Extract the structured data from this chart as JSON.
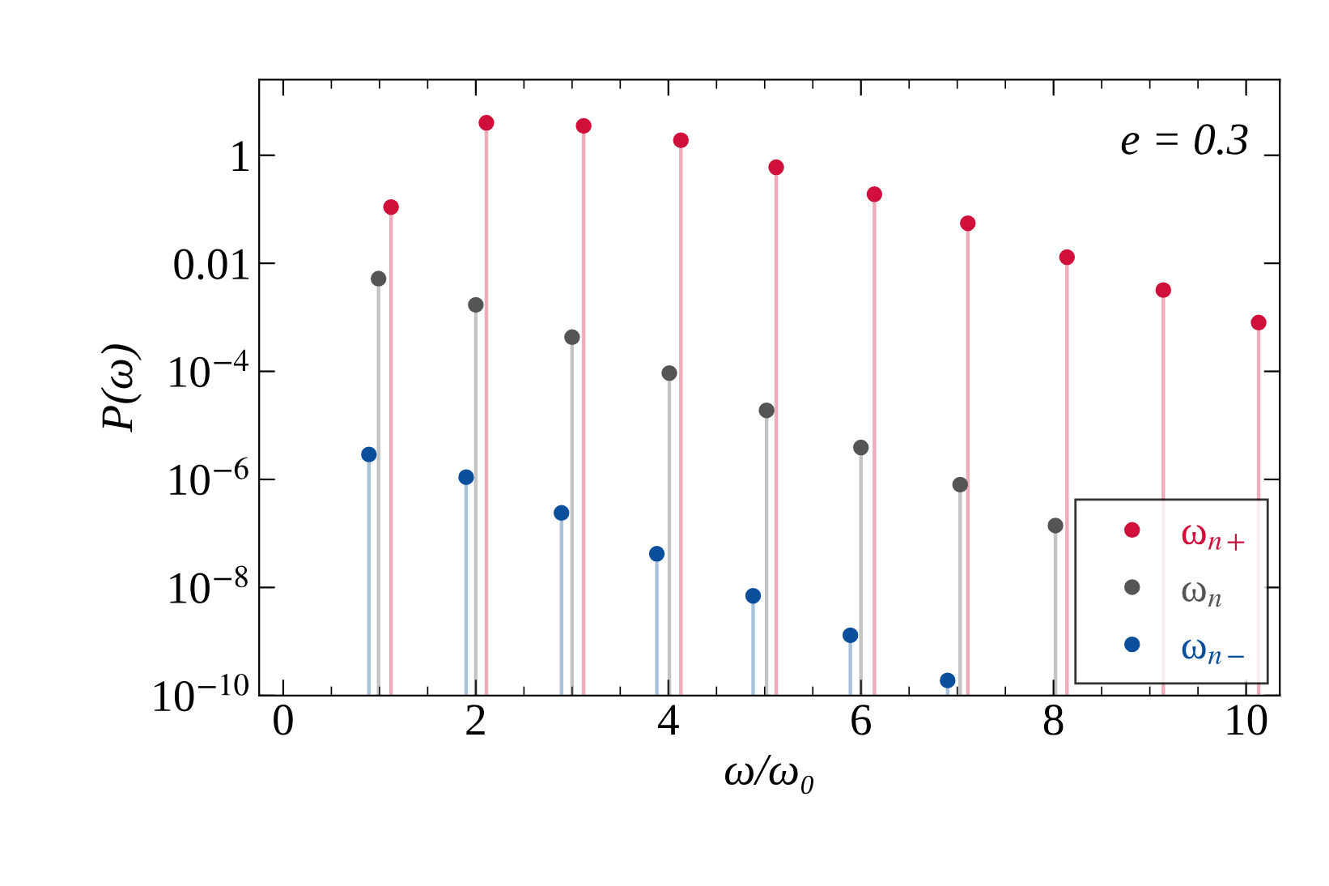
{
  "chart_data": {
    "type": "lollipop",
    "xlabel": "ω/ω₀",
    "ylabel": "P(ω)",
    "log": "y",
    "xlim": [
      -0.25,
      10.35
    ],
    "xticks": [
      0,
      2,
      4,
      6,
      8,
      10
    ],
    "ylim": [
      1e-10,
      25
    ],
    "yticks": [
      {
        "value": 1,
        "label": "1"
      },
      {
        "value": 0.01,
        "label": "0.01"
      },
      {
        "value": 0.0001,
        "label": "10$^{−4}$"
      },
      {
        "value": 1e-06,
        "label": "10$^{−6}$"
      },
      {
        "value": 1e-08,
        "label": "10$^{−8}$"
      },
      {
        "value": 1e-10,
        "label": "10$^{−10}$"
      }
    ],
    "grid": false,
    "legend": "bottom right",
    "marker": "circle",
    "annotations": [
      "e = 0.3"
    ],
    "series": [
      {
        "name": "ω$_{n+}$",
        "color": "#d0103a",
        "x": [
          1.12,
          2.11,
          3.12,
          4.13,
          5.12,
          6.14,
          7.11,
          8.14,
          9.14,
          10.13
        ],
        "values": [
          0.11,
          4,
          3.5,
          1.9,
          0.6,
          0.19,
          0.055,
          0.013,
          0.0032,
          0.0008
        ]
      },
      {
        "name": "ω$_{n}$",
        "color": "#555555",
        "x": [
          0.99,
          2.0,
          3.0,
          4.01,
          5.02,
          6.0,
          7.03,
          8.02
        ],
        "values": [
          0.0052,
          0.0017,
          0.00043,
          9.3e-05,
          1.9e-05,
          3.9e-06,
          8e-07,
          1.4e-07
        ]
      },
      {
        "name": "ω$_{n−}$",
        "color": "#0a4f9c",
        "x": [
          0.89,
          1.9,
          2.89,
          3.88,
          4.88,
          5.89,
          6.9
        ],
        "values": [
          2.9e-06,
          1.1e-06,
          2.4e-07,
          4.2e-08,
          7e-09,
          1.3e-09,
          1.9e-10
        ]
      }
    ]
  }
}
